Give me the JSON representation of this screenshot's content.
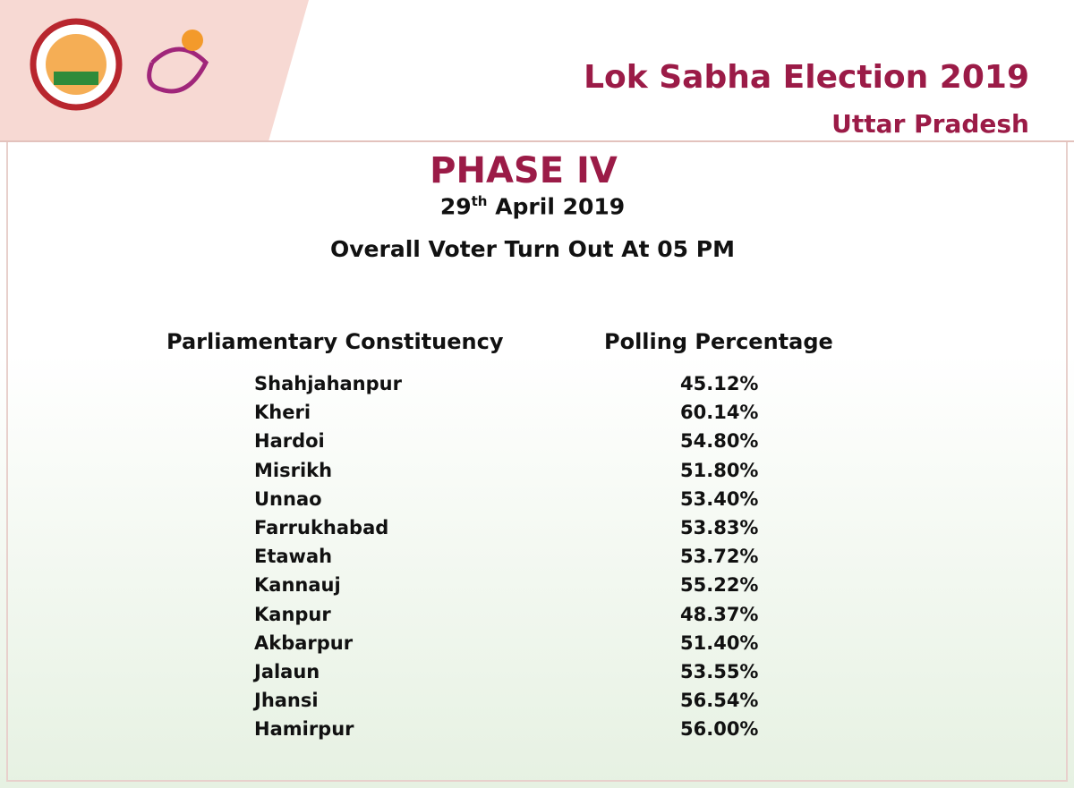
{
  "header": {
    "title": "Lok Sabha Election 2019",
    "subtitle": "Uttar Pradesh"
  },
  "phase": "PHASE IV",
  "date": {
    "day": "29",
    "suffix": "th",
    "rest": "April 2019"
  },
  "heading": "Overall Voter Turn Out At 05 PM",
  "table": {
    "columns": [
      "Parliamentary Constituency",
      "Polling Percentage"
    ],
    "rows": [
      [
        "Shahjahanpur",
        "45.12%"
      ],
      [
        "Kheri",
        "60.14%"
      ],
      [
        "Hardoi",
        "54.80%"
      ],
      [
        "Misrikh",
        "51.80%"
      ],
      [
        "Unnao",
        "53.40%"
      ],
      [
        "Farrukhabad",
        "53.83%"
      ],
      [
        "Etawah",
        "53.72%"
      ],
      [
        "Kannauj",
        "55.22%"
      ],
      [
        "Kanpur",
        "48.37%"
      ],
      [
        "Akbarpur",
        "51.40%"
      ],
      [
        "Jalaun",
        "53.55%"
      ],
      [
        "Jhansi",
        "56.54%"
      ],
      [
        "Hamirpur",
        "56.00%"
      ]
    ]
  }
}
